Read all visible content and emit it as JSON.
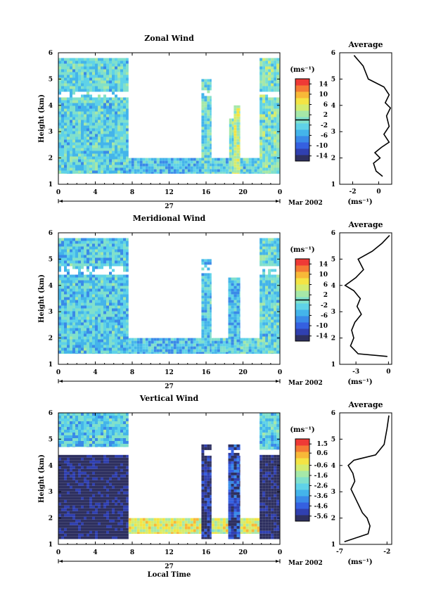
{
  "chart_data": [
    {
      "type": "heatmap",
      "title": "Zonal Wind",
      "ylabel": "Height (km)",
      "ylim": [
        1,
        6
      ],
      "y_ticks": [
        "1",
        "2",
        "3",
        "4",
        "5",
        "6"
      ],
      "xlim": [
        0,
        24
      ],
      "x_ticks": [
        "0",
        "4",
        "8",
        "12",
        "16",
        "20",
        "0"
      ],
      "date_label": "27",
      "month_label": "Mar 2002",
      "colorbar": {
        "unit": "(ms⁻¹)",
        "ticks": [
          "14",
          "10",
          "6",
          "2",
          "-2",
          "-6",
          "-10",
          "-14"
        ],
        "range": [
          -16,
          16
        ],
        "zero_line": 0
      },
      "value_range": [
        -16,
        16
      ],
      "segments": [
        {
          "t0": 0.0,
          "t1": 7.6,
          "h0": 1.4,
          "h1": 5.8,
          "mean": -2
        },
        {
          "t0": 7.6,
          "t1": 15.5,
          "h0": 1.4,
          "h1": 2.0,
          "mean": -4
        },
        {
          "t0": 15.5,
          "t1": 16.6,
          "h0": 1.4,
          "h1": 5.0,
          "mean": -1
        },
        {
          "t0": 16.6,
          "t1": 18.5,
          "h0": 1.4,
          "h1": 2.0,
          "mean": -3
        },
        {
          "t0": 18.5,
          "t1": 19.0,
          "h0": 1.4,
          "h1": 3.5,
          "mean": 0
        },
        {
          "t0": 19.0,
          "t1": 19.7,
          "h0": 1.4,
          "h1": 4.0,
          "mean": 4
        },
        {
          "t0": 19.7,
          "t1": 21.8,
          "h0": 1.4,
          "h1": 2.0,
          "mean": -2
        },
        {
          "t0": 21.8,
          "t1": 24.0,
          "h0": 1.4,
          "h1": 5.8,
          "mean": 0
        }
      ],
      "gap_band": [
        4.4,
        4.6
      ],
      "average": {
        "title": "Average",
        "xlabel": "(ms⁻¹)",
        "xlim": [
          -3,
          1
        ],
        "x_ticks": [
          "-2",
          "0"
        ],
        "ylim": [
          1,
          6
        ],
        "y_ticks": [
          "1",
          "2",
          "3",
          "4",
          "5",
          "6"
        ],
        "points": [
          [
            -1.9,
            5.9
          ],
          [
            -1.2,
            5.5
          ],
          [
            -0.8,
            5.0
          ],
          [
            0.4,
            4.7
          ],
          [
            0.8,
            4.4
          ],
          [
            0.5,
            4.1
          ],
          [
            0.9,
            3.9
          ],
          [
            0.6,
            3.6
          ],
          [
            0.8,
            3.2
          ],
          [
            0.4,
            2.9
          ],
          [
            0.8,
            2.6
          ],
          [
            0.2,
            2.4
          ],
          [
            -0.3,
            2.2
          ],
          [
            0.1,
            2.0
          ],
          [
            -0.4,
            1.8
          ],
          [
            -0.2,
            1.5
          ],
          [
            0.3,
            1.3
          ]
        ]
      }
    },
    {
      "type": "heatmap",
      "title": "Meridional Wind",
      "ylabel": "Height (km)",
      "ylim": [
        1,
        6
      ],
      "y_ticks": [
        "1",
        "2",
        "3",
        "4",
        "5",
        "6"
      ],
      "xlim": [
        0,
        24
      ],
      "x_ticks": [
        "0",
        "4",
        "8",
        "12",
        "16",
        "20",
        "0"
      ],
      "date_label": "27",
      "month_label": "Mar 2002",
      "colorbar": {
        "unit": "(ms⁻¹)",
        "ticks": [
          "14",
          "10",
          "6",
          "2",
          "-2",
          "-6",
          "-10",
          "-14"
        ],
        "range": [
          -16,
          16
        ],
        "zero_line": 0
      },
      "value_range": [
        -16,
        16
      ],
      "segments": [
        {
          "t0": 0.0,
          "t1": 7.6,
          "h0": 1.4,
          "h1": 5.8,
          "mean": -3
        },
        {
          "t0": 7.6,
          "t1": 15.5,
          "h0": 1.4,
          "h1": 2.0,
          "mean": -4
        },
        {
          "t0": 15.5,
          "t1": 16.6,
          "h0": 1.4,
          "h1": 5.0,
          "mean": -3
        },
        {
          "t0": 16.6,
          "t1": 18.4,
          "h0": 1.4,
          "h1": 2.0,
          "mean": -3
        },
        {
          "t0": 18.4,
          "t1": 19.7,
          "h0": 1.4,
          "h1": 4.3,
          "mean": -4
        },
        {
          "t0": 19.7,
          "t1": 21.8,
          "h0": 1.4,
          "h1": 2.0,
          "mean": -2
        },
        {
          "t0": 21.8,
          "t1": 24.0,
          "h0": 1.4,
          "h1": 5.8,
          "mean": -2
        }
      ],
      "gap_band": [
        4.5,
        4.8
      ],
      "average": {
        "title": "Average",
        "xlabel": "(ms⁻¹)",
        "xlim": [
          -4.5,
          0.3
        ],
        "x_ticks": [
          "-3",
          "0"
        ],
        "ylim": [
          1,
          6
        ],
        "y_ticks": [
          "1",
          "2",
          "3",
          "4",
          "5",
          "6"
        ],
        "points": [
          [
            0.1,
            5.9
          ],
          [
            -0.6,
            5.6
          ],
          [
            -1.5,
            5.3
          ],
          [
            -2.8,
            5.0
          ],
          [
            -2.3,
            4.6
          ],
          [
            -3.0,
            4.3
          ],
          [
            -4.0,
            4.0
          ],
          [
            -3.2,
            3.8
          ],
          [
            -2.6,
            3.5
          ],
          [
            -2.9,
            3.2
          ],
          [
            -2.5,
            2.9
          ],
          [
            -3.1,
            2.6
          ],
          [
            -3.4,
            2.3
          ],
          [
            -3.2,
            2.0
          ],
          [
            -3.5,
            1.7
          ],
          [
            -2.8,
            1.4
          ],
          [
            -0.1,
            1.3
          ]
        ]
      }
    },
    {
      "type": "heatmap",
      "title": "Vertical Wind",
      "ylabel": "Height (km)",
      "xlabel": "Local Time",
      "ylim": [
        1,
        6
      ],
      "y_ticks": [
        "1",
        "2",
        "3",
        "4",
        "5",
        "6"
      ],
      "xlim": [
        0,
        24
      ],
      "x_ticks": [
        "0",
        "4",
        "8",
        "12",
        "16",
        "20",
        "0"
      ],
      "date_label": "27",
      "month_label": "Mar 2002",
      "colorbar": {
        "unit": "(ms⁻¹)",
        "ticks": [
          "1.5",
          "0.6",
          "-0.6",
          "-1.6",
          "-2.6",
          "-3.6",
          "-4.6",
          "-5.6"
        ],
        "range": [
          -6.1,
          2.0
        ],
        "zero_line": null
      },
      "value_range": [
        -6.1,
        2.0
      ],
      "segments": [
        {
          "t0": 0.0,
          "t1": 7.6,
          "h0": 1.2,
          "h1": 4.4,
          "mean": -6.0
        },
        {
          "t0": 0.0,
          "t1": 7.6,
          "h0": 4.7,
          "h1": 6.0,
          "mean": -2.8
        },
        {
          "t0": 7.6,
          "t1": 15.5,
          "h0": 1.4,
          "h1": 2.0,
          "mean": -0.6
        },
        {
          "t0": 15.5,
          "t1": 16.6,
          "h0": 1.2,
          "h1": 4.8,
          "mean": -5.6
        },
        {
          "t0": 16.6,
          "t1": 18.4,
          "h0": 1.4,
          "h1": 2.0,
          "mean": -0.8
        },
        {
          "t0": 18.4,
          "t1": 19.7,
          "h0": 1.2,
          "h1": 4.8,
          "mean": -5.0
        },
        {
          "t0": 19.7,
          "t1": 21.8,
          "h0": 1.4,
          "h1": 2.0,
          "mean": -0.6
        },
        {
          "t0": 21.8,
          "t1": 24.0,
          "h0": 1.2,
          "h1": 4.4,
          "mean": -6.0
        },
        {
          "t0": 21.8,
          "t1": 24.0,
          "h0": 4.6,
          "h1": 6.0,
          "mean": -2.8
        }
      ],
      "gap_band": [
        4.4,
        4.6
      ],
      "average": {
        "title": "Average",
        "xlabel": "(ms⁻¹)",
        "xlim": [
          -7,
          -1.5
        ],
        "x_ticks": [
          "-7",
          "-2"
        ],
        "ylim": [
          1,
          6
        ],
        "y_ticks": [
          "1",
          "2",
          "3",
          "4",
          "5",
          "6"
        ],
        "points": [
          [
            -1.8,
            5.9
          ],
          [
            -2.0,
            5.4
          ],
          [
            -2.3,
            4.8
          ],
          [
            -3.2,
            4.4
          ],
          [
            -5.5,
            4.2
          ],
          [
            -6.1,
            4.0
          ],
          [
            -5.6,
            3.7
          ],
          [
            -5.4,
            3.4
          ],
          [
            -5.8,
            3.1
          ],
          [
            -5.4,
            2.8
          ],
          [
            -5.0,
            2.5
          ],
          [
            -4.6,
            2.2
          ],
          [
            -4.1,
            2.0
          ],
          [
            -3.8,
            1.7
          ],
          [
            -4.0,
            1.4
          ],
          [
            -6.5,
            1.1
          ]
        ]
      }
    }
  ]
}
